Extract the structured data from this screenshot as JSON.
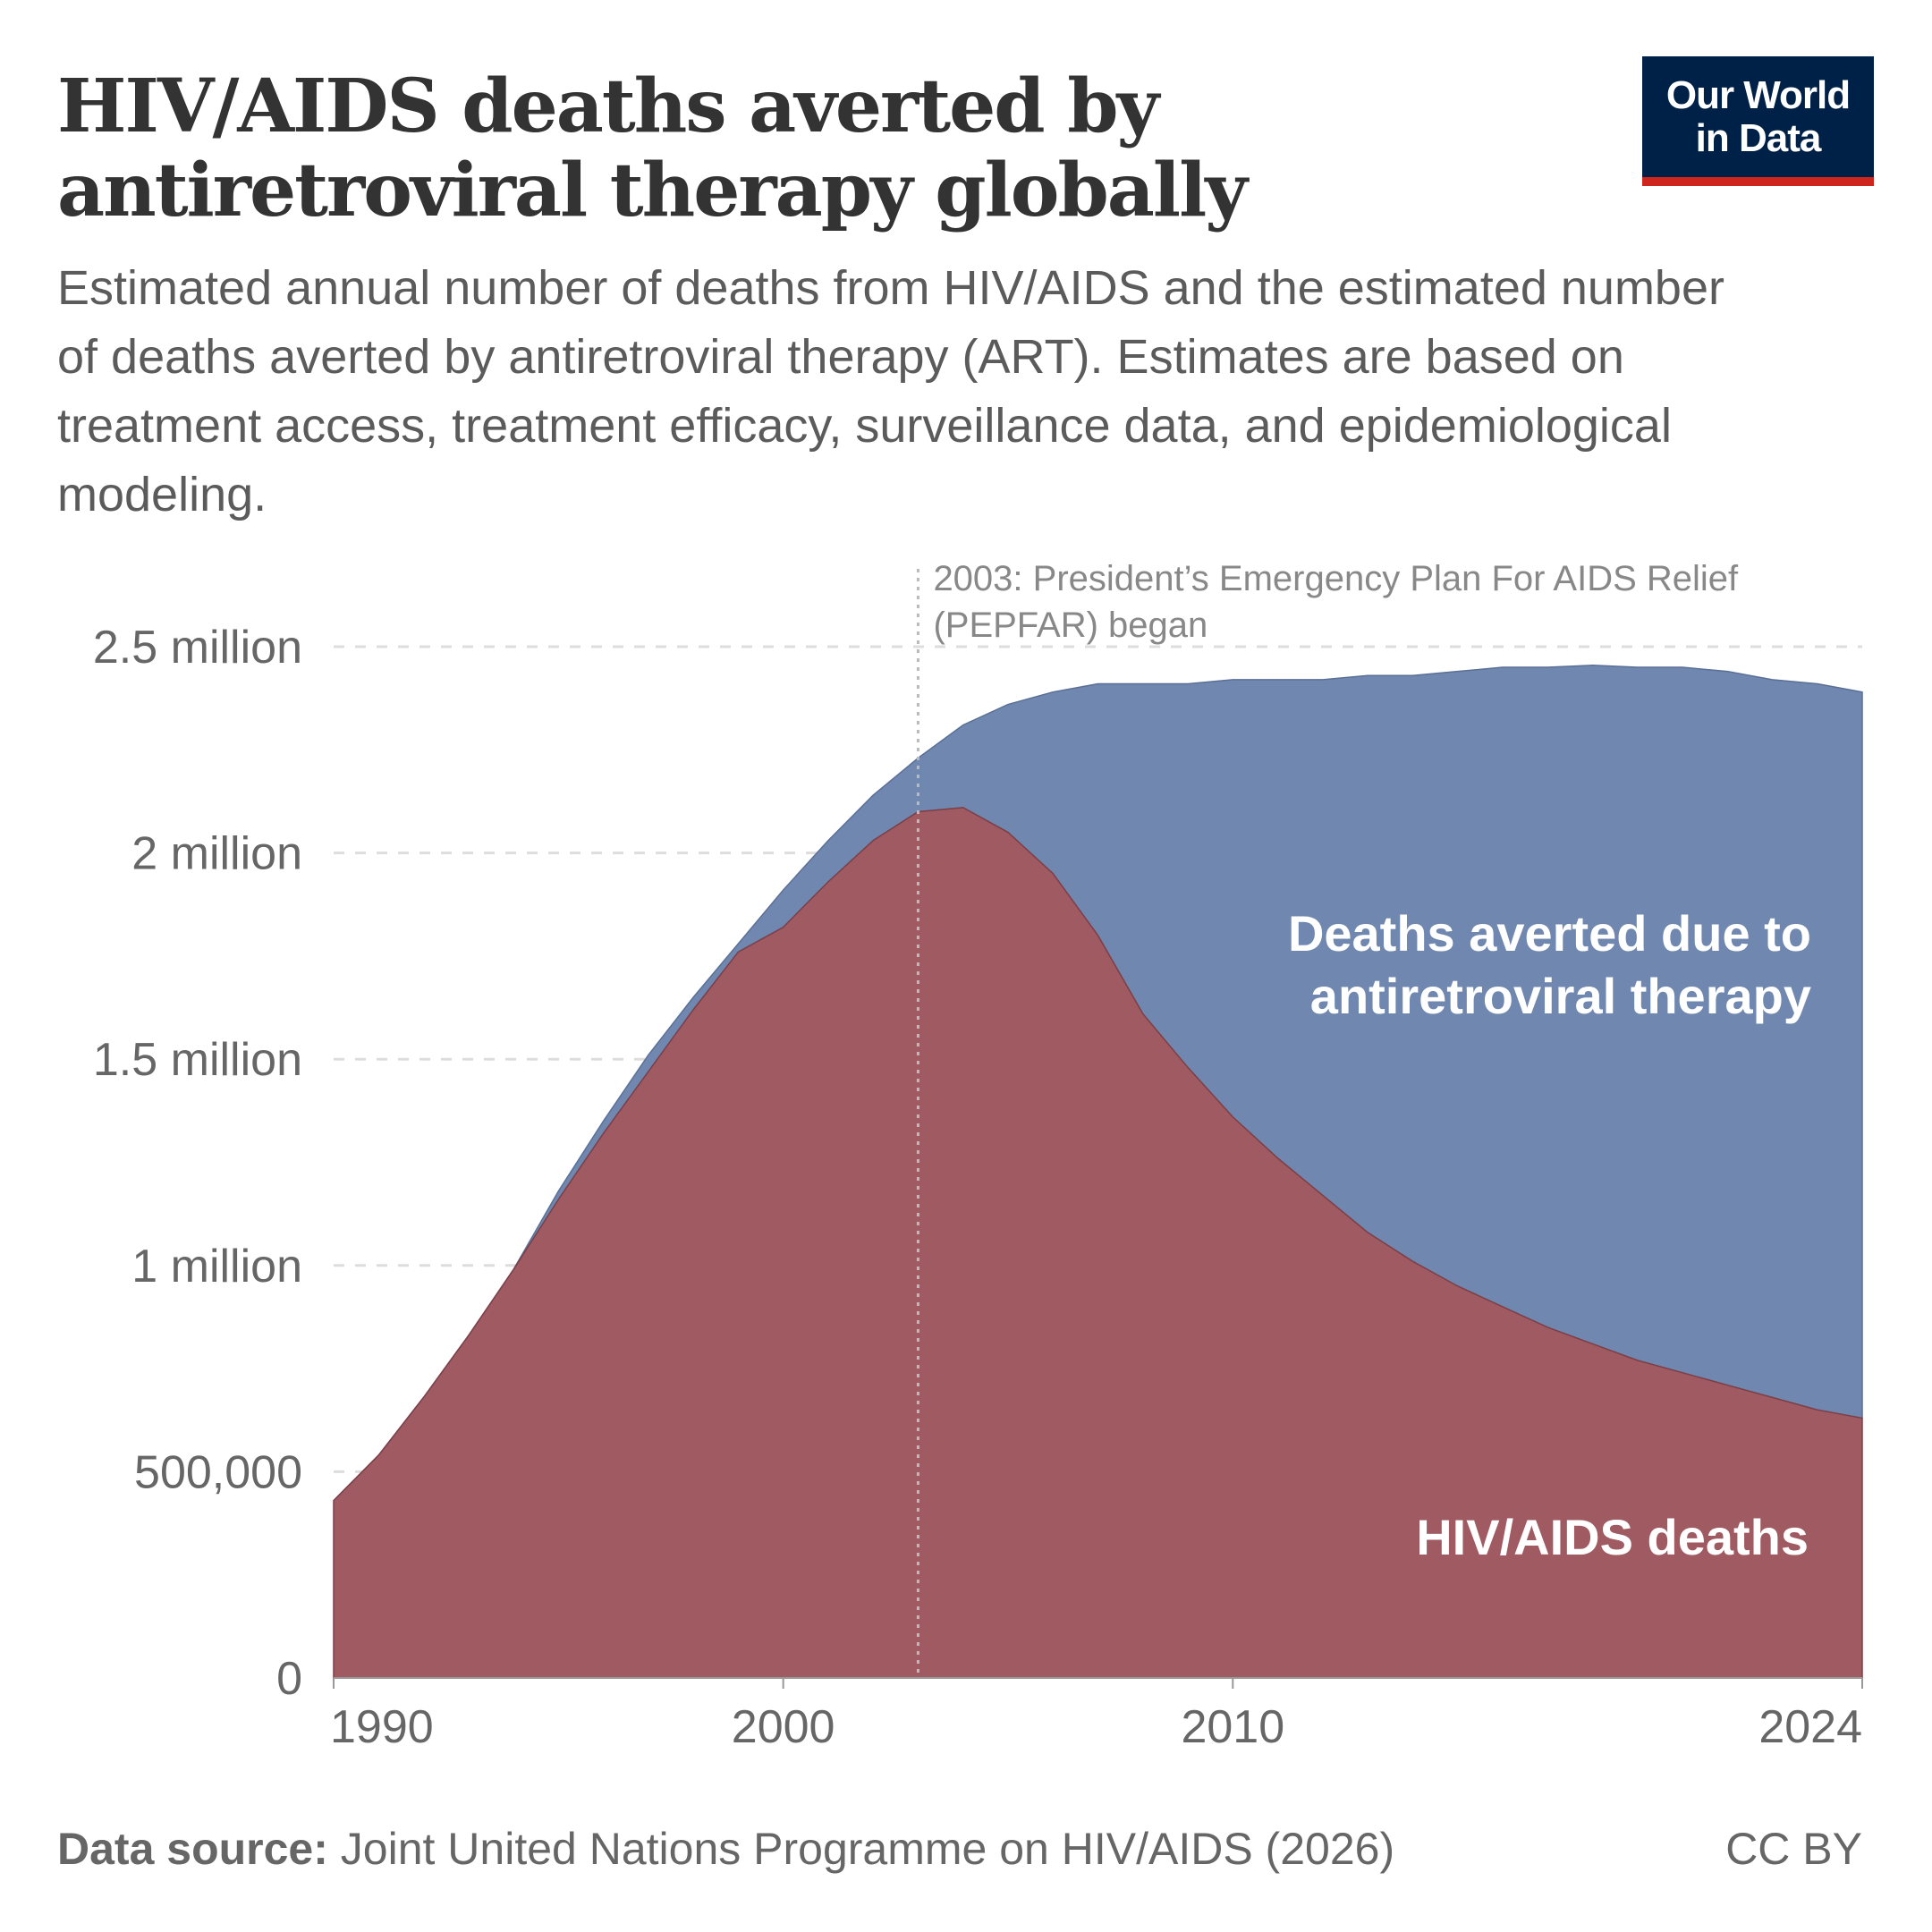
{
  "title": "HIV/AIDS deaths averted by antiretroviral therapy globally",
  "subtitle": "Estimated annual number of deaths from HIV/AIDS and the estimated number of deaths averted by antiretroviral therapy (ART). Estimates are based on treatment access, treatment efficacy, surveillance data, and epidemiological modeling.",
  "logo": {
    "line1": "Our World",
    "line2": "in Data"
  },
  "footer": {
    "source_label": "Data source:",
    "source": "Joint United Nations Programme on HIV/AIDS (2026)",
    "license": "CC BY"
  },
  "colors": {
    "deaths": "#a05a61",
    "averted": "#7088b0",
    "logo_bg": "#002147",
    "logo_accent": "#ce261e"
  },
  "chart_data": {
    "type": "area",
    "stacked": true,
    "x": [
      1990,
      1991,
      1992,
      1993,
      1994,
      1995,
      1996,
      1997,
      1998,
      1999,
      2000,
      2001,
      2002,
      2003,
      2004,
      2005,
      2006,
      2007,
      2008,
      2009,
      2010,
      2011,
      2012,
      2013,
      2014,
      2015,
      2016,
      2017,
      2018,
      2019,
      2020,
      2021,
      2022,
      2023,
      2024
    ],
    "series": [
      {
        "name": "HIV/AIDS deaths",
        "values": [
          0.43,
          0.54,
          0.68,
          0.83,
          0.99,
          1.16,
          1.32,
          1.47,
          1.62,
          1.76,
          1.82,
          1.93,
          2.03,
          2.1,
          2.11,
          2.05,
          1.95,
          1.8,
          1.61,
          1.48,
          1.36,
          1.26,
          1.17,
          1.08,
          1.01,
          0.95,
          0.9,
          0.85,
          0.81,
          0.77,
          0.74,
          0.71,
          0.68,
          0.65,
          0.63
        ]
      },
      {
        "name": "Deaths averted due to antiretroviral therapy",
        "values": [
          0,
          0,
          0,
          0,
          0,
          0.02,
          0.03,
          0.04,
          0.03,
          0.02,
          0.09,
          0.1,
          0.11,
          0.13,
          0.2,
          0.31,
          0.44,
          0.61,
          0.8,
          0.93,
          1.06,
          1.16,
          1.25,
          1.35,
          1.42,
          1.49,
          1.55,
          1.6,
          1.645,
          1.68,
          1.71,
          1.73,
          1.74,
          1.76,
          1.76
        ]
      }
    ],
    "yunit": "million",
    "ylim": [
      0,
      2.5
    ],
    "yticks": [
      {
        "v": 0,
        "label": "0"
      },
      {
        "v": 0.5,
        "label": "500,000"
      },
      {
        "v": 1,
        "label": "1 million"
      },
      {
        "v": 1.5,
        "label": "1.5 million"
      },
      {
        "v": 2,
        "label": "2 million"
      },
      {
        "v": 2.5,
        "label": "2.5 million"
      }
    ],
    "xlim": [
      1990,
      2024
    ],
    "xticks": [
      {
        "v": 1990,
        "label": "1990"
      },
      {
        "v": 2000,
        "label": "2000"
      },
      {
        "v": 2010,
        "label": "2010"
      },
      {
        "v": 2024,
        "label": "2024"
      }
    ],
    "grid": "horizontal dashed",
    "annotation": {
      "year": 2003,
      "line1": "2003: President’s Emergency Plan For AIDS Relief",
      "line2": "(PEPFAR) began"
    }
  }
}
